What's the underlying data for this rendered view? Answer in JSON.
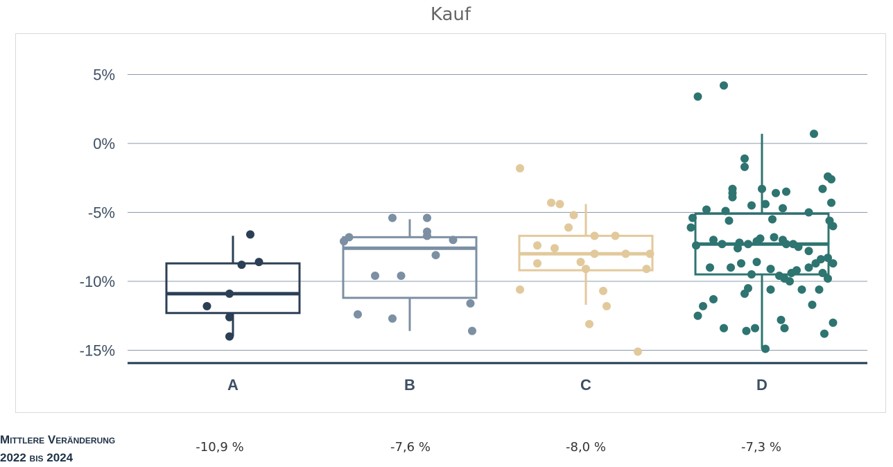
{
  "chart_data": {
    "type": "box",
    "title": "Kauf",
    "xlabel": "",
    "ylabel": "",
    "ylim": [
      -16,
      6
    ],
    "y_ticks": [
      {
        "value": 5,
        "label": "5%"
      },
      {
        "value": 0,
        "label": "0%"
      },
      {
        "value": -5,
        "label": "-5%"
      },
      {
        "value": -10,
        "label": "-10%"
      },
      {
        "value": -15,
        "label": "-15%"
      }
    ],
    "grid": true,
    "categories": [
      "A",
      "B",
      "C",
      "D"
    ],
    "series": [
      {
        "category": "A",
        "color": "#2b3f55",
        "box": {
          "whisker_low": -14.0,
          "q1": -12.3,
          "median": -10.9,
          "q3": -8.7,
          "whisker_high": -6.7
        },
        "points": [
          [
            0.1,
            -6.6
          ],
          [
            0.05,
            -8.8
          ],
          [
            0.15,
            -8.6
          ],
          [
            -0.02,
            -10.9
          ],
          [
            -0.15,
            -11.8
          ],
          [
            -0.02,
            -12.6
          ],
          [
            -0.02,
            -14.0
          ]
        ]
      },
      {
        "category": "B",
        "color": "#7c8fa3",
        "box": {
          "whisker_low": -13.6,
          "q1": -11.2,
          "median": -7.6,
          "q3": -6.8,
          "whisker_high": -5.5
        },
        "points": [
          [
            -0.38,
            -7.1
          ],
          [
            -0.35,
            -6.8
          ],
          [
            -0.1,
            -5.4
          ],
          [
            0.1,
            -5.4
          ],
          [
            0.1,
            -6.4
          ],
          [
            0.1,
            -6.7
          ],
          [
            0.15,
            -8.1
          ],
          [
            0.25,
            -7.0
          ],
          [
            -0.2,
            -9.6
          ],
          [
            -0.05,
            -9.6
          ],
          [
            -0.3,
            -12.4
          ],
          [
            -0.1,
            -12.7
          ],
          [
            0.35,
            -11.6
          ],
          [
            0.36,
            -13.6
          ]
        ]
      },
      {
        "category": "C",
        "color": "#e2c99c",
        "box": {
          "whisker_low": -11.7,
          "q1": -9.2,
          "median": -8.0,
          "q3": -6.7,
          "whisker_high": -4.4
        },
        "points": [
          [
            -0.38,
            -1.8
          ],
          [
            -0.2,
            -4.3
          ],
          [
            -0.15,
            -4.4
          ],
          [
            -0.07,
            -5.2
          ],
          [
            -0.1,
            -6.1
          ],
          [
            0.05,
            -6.7
          ],
          [
            0.17,
            -6.7
          ],
          [
            -0.28,
            -7.4
          ],
          [
            -0.18,
            -7.6
          ],
          [
            0.05,
            -8.0
          ],
          [
            0.23,
            -8.0
          ],
          [
            0.37,
            -8.0
          ],
          [
            -0.28,
            -8.7
          ],
          [
            -0.03,
            -8.6
          ],
          [
            0.0,
            -9.1
          ],
          [
            0.35,
            -9.1
          ],
          [
            -0.38,
            -10.6
          ],
          [
            0.1,
            -10.7
          ],
          [
            0.12,
            -11.8
          ],
          [
            0.02,
            -13.1
          ],
          [
            0.3,
            -15.1
          ]
        ]
      },
      {
        "category": "D",
        "color": "#2e7470",
        "box": {
          "whisker_low": -14.9,
          "q1": -9.5,
          "median": -7.3,
          "q3": -5.1,
          "whisker_high": 0.7
        },
        "points": [
          [
            -0.37,
            3.4
          ],
          [
            -0.22,
            4.2
          ],
          [
            0.3,
            0.7
          ],
          [
            -0.1,
            -1.1
          ],
          [
            -0.1,
            -1.7
          ],
          [
            0.38,
            -2.4
          ],
          [
            0.4,
            -2.6
          ],
          [
            -0.17,
            -3.3
          ],
          [
            0.0,
            -3.3
          ],
          [
            -0.17,
            -3.6
          ],
          [
            -0.17,
            -3.9
          ],
          [
            0.14,
            -3.5
          ],
          [
            0.08,
            -3.6
          ],
          [
            0.35,
            -3.3
          ],
          [
            -0.06,
            -4.5
          ],
          [
            0.02,
            -4.4
          ],
          [
            0.4,
            -4.3
          ],
          [
            -0.4,
            -5.4
          ],
          [
            -0.32,
            -4.8
          ],
          [
            -0.21,
            -4.9
          ],
          [
            0.12,
            -4.7
          ],
          [
            0.27,
            -5.0
          ],
          [
            0.06,
            -5.5
          ],
          [
            0.39,
            -5.6
          ],
          [
            -0.41,
            -6.1
          ],
          [
            0.41,
            -6.0
          ],
          [
            -0.19,
            -5.6
          ],
          [
            -0.38,
            -7.4
          ],
          [
            -0.28,
            -7.0
          ],
          [
            -0.23,
            -7.3
          ],
          [
            -0.14,
            -7.6
          ],
          [
            -0.13,
            -7.2
          ],
          [
            -0.03,
            -7.1
          ],
          [
            -0.01,
            -6.9
          ],
          [
            0.07,
            -6.8
          ],
          [
            0.12,
            -7.0
          ],
          [
            0.14,
            -7.3
          ],
          [
            0.18,
            -7.3
          ],
          [
            0.21,
            -7.5
          ],
          [
            0.27,
            -7.8
          ],
          [
            -0.08,
            -7.3
          ],
          [
            0.34,
            -8.4
          ],
          [
            0.38,
            -8.3
          ],
          [
            -0.3,
            -9.0
          ],
          [
            -0.18,
            -9.0
          ],
          [
            -0.12,
            -8.7
          ],
          [
            -0.03,
            -8.6
          ],
          [
            0.05,
            -9.1
          ],
          [
            0.1,
            -9.6
          ],
          [
            0.13,
            -9.8
          ],
          [
            0.17,
            -9.4
          ],
          [
            0.2,
            -9.2
          ],
          [
            0.27,
            -9.0
          ],
          [
            0.31,
            -8.7
          ],
          [
            0.41,
            -8.7
          ],
          [
            -0.06,
            -9.5
          ],
          [
            0.35,
            -9.4
          ],
          [
            0.38,
            -9.8
          ],
          [
            -0.08,
            -10.5
          ],
          [
            -0.1,
            -10.9
          ],
          [
            0.16,
            -10.0
          ],
          [
            0.05,
            -10.6
          ],
          [
            0.33,
            -10.6
          ],
          [
            -0.28,
            -11.3
          ],
          [
            -0.34,
            -11.8
          ],
          [
            0.23,
            -10.6
          ],
          [
            0.29,
            -11.7
          ],
          [
            -0.37,
            -12.5
          ],
          [
            0.11,
            -12.8
          ],
          [
            0.41,
            -13.0
          ],
          [
            -0.22,
            -13.4
          ],
          [
            -0.09,
            -13.6
          ],
          [
            -0.04,
            -13.4
          ],
          [
            0.13,
            -13.4
          ],
          [
            0.36,
            -13.8
          ],
          [
            0.02,
            -14.9
          ]
        ]
      }
    ]
  },
  "footer": {
    "label_line1_caps": "M",
    "label_line1_small": "ittlere ",
    "label_line1_caps2": "V",
    "label_line1_small2": "eränderung",
    "label_line2_a": "2022 ",
    "label_line2_small": "bis",
    "label_line2_b": " 2024",
    "values": [
      "-10,9 %",
      "-7,6 %",
      "-8,0 %",
      "-7,3 %"
    ]
  }
}
